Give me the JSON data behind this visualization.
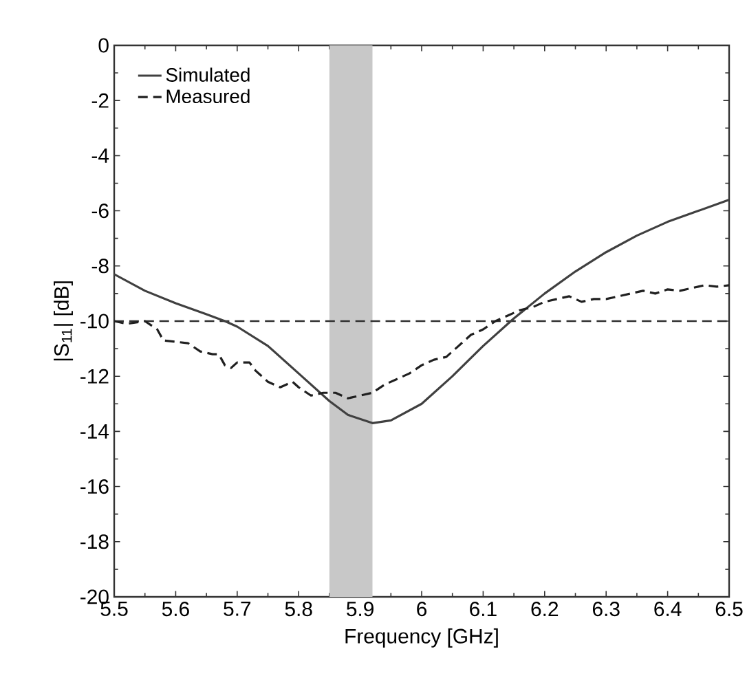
{
  "chart_data": {
    "type": "line",
    "xlabel": "Frequency    [GHz]",
    "ylabel": "|S$_{11}$|    [dB]",
    "xlim": [
      5.5,
      6.5
    ],
    "xticks": [
      5.5,
      5.6,
      5.7,
      5.8,
      5.9,
      6,
      6.1,
      6.2,
      6.3,
      6.4,
      6.5
    ],
    "ylim": [
      -20,
      0
    ],
    "yticks": [
      -20,
      -18,
      -16,
      -14,
      -12,
      -10,
      -8,
      -6,
      -4,
      -2,
      0
    ],
    "grid": false,
    "legend": "top left",
    "marker": "none",
    "ref_lines": [
      {
        "axis": "y",
        "value": -10,
        "color": "#303030",
        "line_style": "dashed"
      }
    ],
    "bands": [
      {
        "axis": "x",
        "from": 5.85,
        "to": 5.92,
        "color": "#c8c8c8"
      }
    ],
    "series": [
      {
        "name": "Simulated",
        "color": "#404040",
        "line_style": "solid",
        "x": [
          5.5,
          5.55,
          5.6,
          5.65,
          5.68,
          5.7,
          5.75,
          5.8,
          5.85,
          5.88,
          5.92,
          5.95,
          6.0,
          6.05,
          6.1,
          6.15,
          6.2,
          6.25,
          6.3,
          6.35,
          6.4,
          6.45,
          6.5
        ],
        "values": [
          -8.3,
          -8.9,
          -9.35,
          -9.75,
          -10,
          -10.2,
          -10.9,
          -11.9,
          -12.9,
          -13.4,
          -13.7,
          -13.6,
          -13.0,
          -12.0,
          -10.9,
          -9.9,
          -9.0,
          -8.2,
          -7.5,
          -6.9,
          -6.4,
          -6.0,
          -5.6
        ]
      },
      {
        "name": "Measured",
        "color": "#202020",
        "line_style": "dashed",
        "x": [
          5.5,
          5.52,
          5.55,
          5.57,
          5.58,
          5.6,
          5.62,
          5.64,
          5.66,
          5.67,
          5.68,
          5.69,
          5.7,
          5.72,
          5.73,
          5.75,
          5.77,
          5.78,
          5.79,
          5.8,
          5.82,
          5.84,
          5.86,
          5.88,
          5.9,
          5.92,
          5.94,
          5.96,
          5.98,
          6.0,
          6.02,
          6.04,
          6.06,
          6.08,
          6.1,
          6.12,
          6.14,
          6.16,
          6.18,
          6.2,
          6.22,
          6.24,
          6.26,
          6.28,
          6.3,
          6.32,
          6.34,
          6.36,
          6.38,
          6.4,
          6.42,
          6.44,
          6.46,
          6.48,
          6.5
        ],
        "values": [
          -10,
          -10.1,
          -10.0,
          -10.3,
          -10.7,
          -10.75,
          -10.8,
          -11.1,
          -11.2,
          -11.2,
          -11.6,
          -11.7,
          -11.5,
          -11.5,
          -11.8,
          -12.2,
          -12.4,
          -12.3,
          -12.2,
          -12.4,
          -12.7,
          -12.6,
          -12.6,
          -12.8,
          -12.7,
          -12.6,
          -12.3,
          -12.1,
          -11.9,
          -11.6,
          -11.4,
          -11.3,
          -10.9,
          -10.5,
          -10.3,
          -10.0,
          -9.8,
          -9.6,
          -9.5,
          -9.3,
          -9.2,
          -9.1,
          -9.3,
          -9.2,
          -9.2,
          -9.1,
          -9.0,
          -8.9,
          -9.0,
          -8.85,
          -8.9,
          -8.8,
          -8.7,
          -8.75,
          -8.7
        ]
      }
    ]
  }
}
